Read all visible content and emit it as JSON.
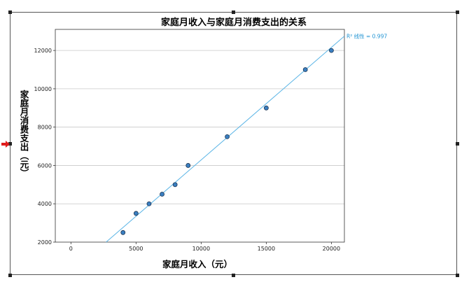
{
  "chart_data": {
    "type": "scatter",
    "title": "家庭月收入与家庭月消费支出的关系",
    "xlabel": "家庭月收入（元）",
    "ylabel": "家庭月消费支出（元）",
    "xlim": [
      -1200,
      21000
    ],
    "ylim": [
      2000,
      13100
    ],
    "xticks": [
      0,
      5000,
      10000,
      15000,
      20000
    ],
    "yticks": [
      2000,
      4000,
      6000,
      8000,
      10000,
      12000
    ],
    "xtick_labels": [
      "0",
      "5000",
      "10000",
      "15000",
      "20000"
    ],
    "ytick_labels": [
      "2000",
      "4000",
      "6000",
      "8000",
      "10000",
      "12000"
    ],
    "grid": "horizontal",
    "points": [
      {
        "x": 4000,
        "y": 2500
      },
      {
        "x": 5000,
        "y": 3500
      },
      {
        "x": 6000,
        "y": 4000
      },
      {
        "x": 7000,
        "y": 4500
      },
      {
        "x": 8000,
        "y": 5000
      },
      {
        "x": 9000,
        "y": 6000
      },
      {
        "x": 12000,
        "y": 7500
      },
      {
        "x": 15000,
        "y": 9000
      },
      {
        "x": 18000,
        "y": 11000
      },
      {
        "x": 20000,
        "y": 12000
      }
    ],
    "fit_line": {
      "x": [
        2700,
        21000
      ],
      "y": [
        2000,
        12750
      ]
    },
    "fit_label": "R² 线性 = 0.997",
    "colors": {
      "point_fill": "#3a7fc1",
      "point_stroke": "#1d3552",
      "fit_line": "#5bb5e6",
      "grid": "#c8c8c8"
    }
  }
}
